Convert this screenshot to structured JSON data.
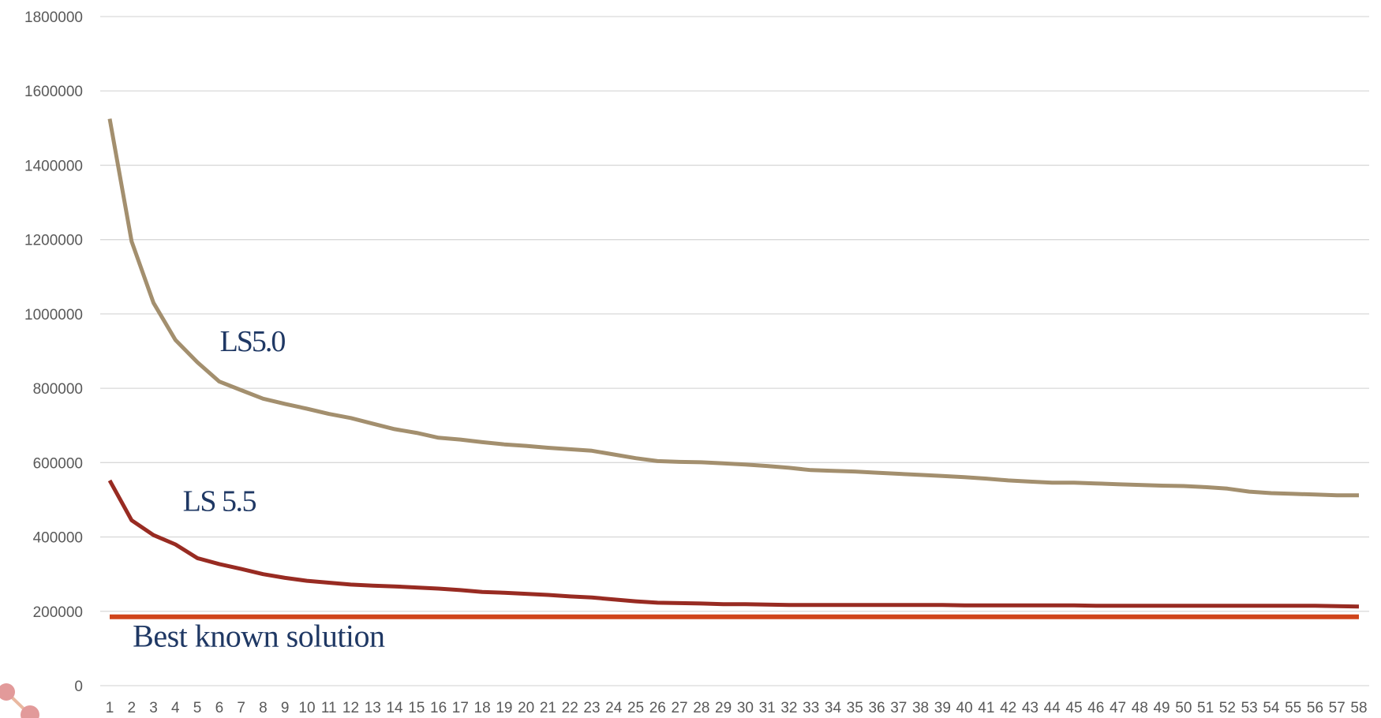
{
  "chart_data": {
    "type": "line",
    "title": "",
    "xlabel": "",
    "ylabel": "",
    "ylim": [
      0,
      1800000
    ],
    "yticks": [
      0,
      200000,
      400000,
      600000,
      800000,
      1000000,
      1200000,
      1400000,
      1600000,
      1800000
    ],
    "grid": true,
    "x": [
      1,
      2,
      3,
      4,
      5,
      6,
      7,
      8,
      9,
      10,
      11,
      12,
      13,
      14,
      15,
      16,
      17,
      18,
      19,
      20,
      21,
      22,
      23,
      24,
      25,
      26,
      27,
      28,
      29,
      30,
      31,
      32,
      33,
      34,
      35,
      36,
      37,
      38,
      39,
      40,
      41,
      42,
      43,
      44,
      45,
      46,
      47,
      48,
      49,
      50,
      51,
      52,
      53,
      54,
      55,
      56,
      57,
      58
    ],
    "series": [
      {
        "name": "LS5.0",
        "color": "#a38f6e",
        "values": [
          1525000,
          1195000,
          1030000,
          930000,
          870000,
          818000,
          795000,
          772000,
          758000,
          745000,
          731000,
          720000,
          705000,
          690000,
          680000,
          667000,
          662000,
          655000,
          649000,
          645000,
          640000,
          636000,
          632000,
          622000,
          612000,
          604000,
          602000,
          601000,
          598000,
          595000,
          591000,
          586000,
          580000,
          578000,
          576000,
          573000,
          570000,
          567000,
          564000,
          561000,
          557000,
          552000,
          549000,
          546000,
          546000,
          544000,
          542000,
          540000,
          538000,
          537000,
          534000,
          530000,
          522000,
          518000,
          516000,
          514000,
          512000,
          512000
        ]
      },
      {
        "name": "LS 5.5",
        "color": "#982b22",
        "values": [
          552000,
          445000,
          405000,
          380000,
          343000,
          327000,
          314000,
          300000,
          290000,
          282000,
          277000,
          272000,
          269000,
          267000,
          264000,
          261000,
          257000,
          252000,
          250000,
          247000,
          244000,
          240000,
          237000,
          232000,
          227000,
          223000,
          222000,
          221000,
          219000,
          219000,
          218000,
          217000,
          217000,
          217000,
          217000,
          217000,
          217000,
          217000,
          217000,
          216000,
          216000,
          216000,
          216000,
          216000,
          216000,
          215000,
          215000,
          215000,
          215000,
          215000,
          215000,
          215000,
          215000,
          215000,
          215000,
          215000,
          214000,
          213000
        ]
      },
      {
        "name": "Best known solution",
        "color": "#d0451b",
        "values": [
          185000,
          185000,
          185000,
          185000,
          185000,
          185000,
          185000,
          185000,
          185000,
          185000,
          185000,
          185000,
          185000,
          185000,
          185000,
          185000,
          185000,
          185000,
          185000,
          185000,
          185000,
          185000,
          185000,
          185000,
          185000,
          185000,
          185000,
          185000,
          185000,
          185000,
          185000,
          185000,
          185000,
          185000,
          185000,
          185000,
          185000,
          185000,
          185000,
          185000,
          185000,
          185000,
          185000,
          185000,
          185000,
          185000,
          185000,
          185000,
          185000,
          185000,
          185000,
          185000,
          185000,
          185000,
          185000,
          185000,
          185000,
          185000
        ]
      }
    ],
    "annotations": [
      {
        "text": "LS5.0",
        "at_x": 7.5,
        "at_y": 900000,
        "series": 0
      },
      {
        "text": "LS 5.5",
        "at_x": 6,
        "at_y": 470000,
        "series": 1
      },
      {
        "text": "Best known solution",
        "at_x": 7.8,
        "at_y": 105000,
        "series": 2
      }
    ],
    "decor_color": "#e29a9a"
  }
}
